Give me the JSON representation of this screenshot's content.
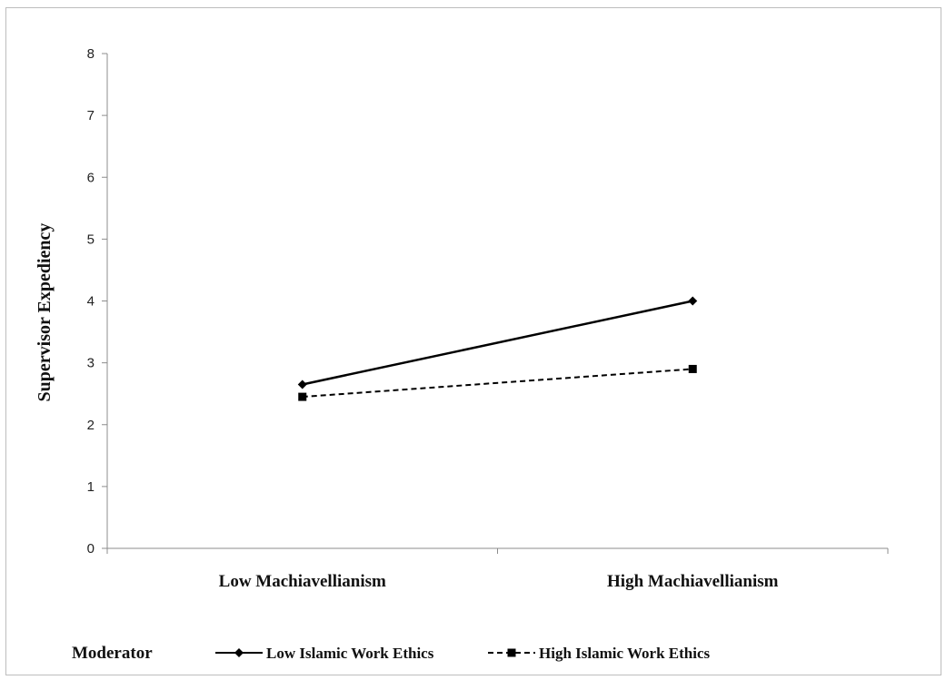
{
  "chart_data": {
    "type": "line",
    "categories": [
      "Low Machiavellianism",
      "High Machiavellianism"
    ],
    "series": [
      {
        "name": "Low Islamic Work Ethics",
        "values": [
          2.65,
          4.0
        ],
        "style": "solid",
        "marker": "diamond",
        "color": "#000000"
      },
      {
        "name": "High Islamic Work Ethics",
        "values": [
          2.45,
          2.9
        ],
        "style": "dashed",
        "marker": "square",
        "color": "#000000"
      }
    ],
    "title": "",
    "xlabel": "",
    "ylabel": "Supervisor Expediency",
    "ylim": [
      0,
      8
    ],
    "yticks": [
      "0",
      "1",
      "2",
      "3",
      "4",
      "5",
      "6",
      "7",
      "8"
    ],
    "grid": false,
    "legend": {
      "title": "Moderator",
      "placement": "bottom"
    }
  }
}
